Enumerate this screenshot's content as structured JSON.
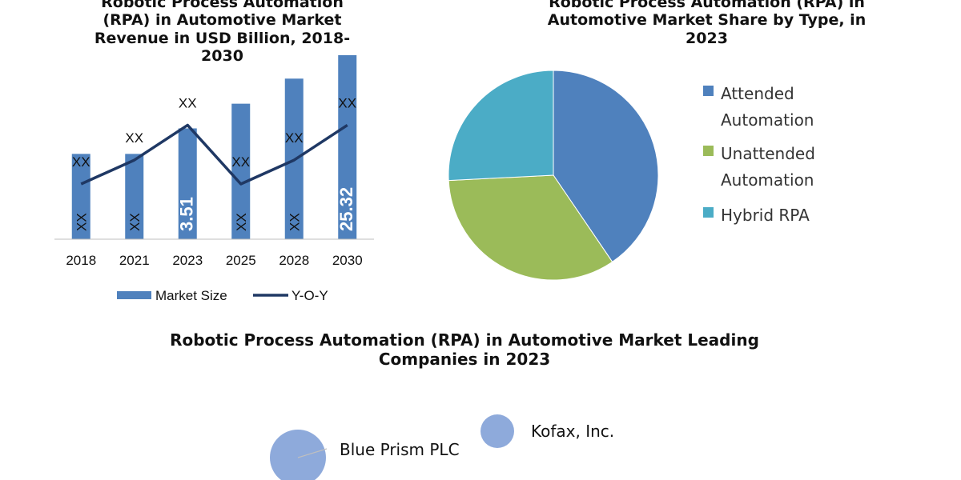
{
  "charts": {
    "revenue": {
      "title_lines": [
        "Robotic Process Automation",
        "(RPA) in Automotive Market",
        "Revenue in USD Billion, 2018-",
        "2030"
      ]
    },
    "share": {
      "title_lines": [
        "Robotic Process Automation (RPA) in",
        "Automotive Market Share by Type, in",
        "2023"
      ]
    },
    "companies": {
      "title_lines": [
        "Robotic Process Automation (RPA) in Automotive Market Leading",
        "Companies in 2023"
      ]
    }
  },
  "chart_data": [
    {
      "type": "bar",
      "categories": [
        "2018",
        "2021",
        "2023",
        "2025",
        "2028",
        "2030"
      ],
      "series": [
        {
          "name": "Market Size",
          "values": [
            0.4636,
            0.4636,
            0.6023,
            0.7364,
            0.8727,
            1.0
          ],
          "data_labels": [
            "XX",
            "XX",
            "3.51",
            "XX",
            "XX",
            "25.32"
          ],
          "color": "#4f81bd"
        },
        {
          "name": "Y-O-Y",
          "type": "line",
          "values": [
            0.3,
            0.43,
            0.62,
            0.3,
            0.43,
            0.62
          ],
          "data_labels": [
            "XX",
            "XX",
            "XX",
            "XX",
            "XX",
            "XX"
          ],
          "color": "#1f3864"
        }
      ],
      "ylim": [
        0,
        1
      ]
    },
    {
      "type": "pie",
      "categories": [
        "Attended Automation",
        "Unattended Automation",
        "Hybrid RPA"
      ],
      "values": [
        40.5,
        33.7,
        25.8
      ],
      "colors": [
        "#4f81bd",
        "#9bbb59",
        "#4bacc6"
      ],
      "legend_lines": [
        [
          "Attended",
          "Automation"
        ],
        [
          "Unattended",
          "Automation"
        ],
        [
          "Hybrid RPA"
        ]
      ],
      "legend": "right"
    },
    {
      "type": "scatter",
      "labels": [
        "Blue Prism PLC",
        "Kofax, Inc."
      ],
      "color": "#8eaadb"
    }
  ]
}
